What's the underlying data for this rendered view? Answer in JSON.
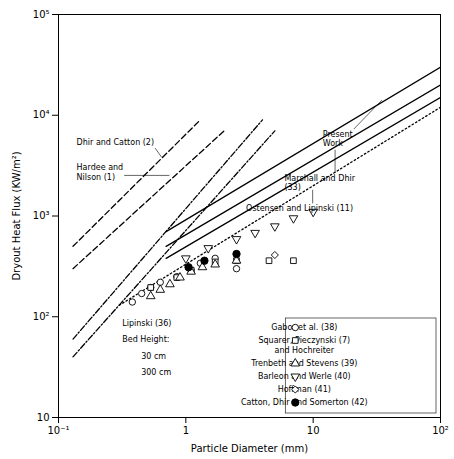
{
  "chart_data": {
    "type": "line",
    "log": true,
    "xlabel": "Particle Diameter (mm)",
    "ylabel": "Dryout Heat Flux (KW/m²)",
    "xlim": [
      0.1,
      100
    ],
    "ylim": [
      10,
      100000
    ],
    "xticks": [
      {
        "value": 0.1,
        "label": "10⁻¹"
      },
      1,
      10,
      {
        "value": 100,
        "label": "10²"
      }
    ],
    "yticks": [
      10,
      {
        "value": 100,
        "label": "10²"
      },
      {
        "value": 1000,
        "label": "10³"
      },
      {
        "value": 10000,
        "label": "10⁴"
      },
      {
        "value": 100000,
        "label": "10⁵"
      }
    ],
    "grid": false,
    "legend": "lower right",
    "series": [
      {
        "type": "line",
        "color": "black",
        "line_style": "dashed",
        "x": [
          0.13,
          1.3
        ],
        "values": [
          500,
          9000
        ]
      },
      {
        "type": "line",
        "color": "black",
        "line_style": "dashed",
        "x": [
          0.13,
          2.0
        ],
        "values": [
          300,
          7000
        ]
      },
      {
        "type": "line",
        "color": "black",
        "line_style": "dashdot",
        "x": [
          0.13,
          4.0
        ],
        "values": [
          60,
          9000
        ]
      },
      {
        "type": "line",
        "color": "black",
        "line_style": "dashdot",
        "x": [
          0.13,
          5.0
        ],
        "values": [
          40,
          7000
        ]
      },
      {
        "type": "line",
        "color": "black",
        "line_style": "solid",
        "x": [
          0.7,
          100
        ],
        "values": [
          700,
          30000
        ]
      },
      {
        "type": "line",
        "color": "black",
        "line_style": "solid",
        "x": [
          0.7,
          100
        ],
        "values": [
          500,
          20000
        ]
      },
      {
        "type": "line",
        "color": "black",
        "line_style": "solid",
        "x": [
          0.7,
          100
        ],
        "values": [
          380,
          15000
        ]
      },
      {
        "type": "line",
        "color": "black",
        "line_style": "dotted",
        "x": [
          0.3,
          100
        ],
        "values": [
          130,
          12000
        ]
      },
      {
        "name": "Gabor et al. (38)",
        "type": "scatter",
        "marker": "circle-open",
        "color": "black",
        "x": [
          0.38,
          0.45,
          0.53,
          0.63,
          0.85,
          1.1,
          1.3,
          1.7,
          2.5
        ],
        "values": [
          140,
          170,
          195,
          220,
          250,
          290,
          340,
          380,
          300
        ]
      },
      {
        "name": "Squarer, Pieczynski (7)\nand Hochreiter",
        "type": "scatter",
        "marker": "square-open",
        "color": "black",
        "x": [
          0.53,
          0.85,
          1.1,
          1.7,
          2.5,
          4.5,
          7.0
        ],
        "values": [
          195,
          245,
          290,
          350,
          360,
          360,
          360
        ]
      },
      {
        "name": "Trenbeth and Stevens (39)",
        "type": "scatter",
        "marker": "triangle-up-open",
        "color": "black",
        "x": [
          0.53,
          0.63,
          0.75,
          0.9,
          1.1,
          1.35,
          1.7,
          2.5
        ],
        "values": [
          160,
          185,
          210,
          245,
          280,
          310,
          330,
          360
        ]
      },
      {
        "name": "Barleon and Werle (40)",
        "type": "scatter",
        "marker": "triangle-down-open",
        "color": "black",
        "x": [
          1.0,
          1.5,
          2.5,
          3.5,
          5.0,
          7.0,
          10.0
        ],
        "values": [
          380,
          480,
          590,
          680,
          790,
          950,
          1100
        ]
      },
      {
        "name": "Hoffman (41)",
        "type": "scatter",
        "marker": "diamond-open",
        "color": "black",
        "x": [
          5.0
        ],
        "values": [
          410
        ]
      },
      {
        "name": "Catton, Dhir and Somerton (42)",
        "type": "scatter",
        "marker": "circle",
        "color": "black",
        "x": [
          1.05,
          1.4,
          2.5
        ],
        "values": [
          310,
          360,
          420
        ]
      }
    ],
    "annotations": [
      {
        "text": "Dhir and Catton (2)",
        "x": 0.14,
        "y": 5000,
        "arrow_x": 0.65,
        "arrow_y": 3800
      },
      {
        "text": "Hardee and\nNilson (1)",
        "x": 0.14,
        "y": 2800,
        "arrow_x": 0.75,
        "arrow_y": 2500
      },
      {
        "text": "Present\nWork",
        "x": 12,
        "y": 6000,
        "arrow_x": 35,
        "arrow_y": 14000
      },
      {
        "text": "Marshall and Dhir\n(33)",
        "x": 6,
        "y": 2200,
        "arrow_x": 15,
        "arrow_y": 4500
      },
      {
        "text": "Ostensen and Lipinski (11)",
        "x": 3,
        "y": 1100,
        "arrow_x": 10,
        "arrow_y": 1800
      },
      {
        "text": "Lipinski (36)",
        "x": 0.32,
        "y": 80
      },
      {
        "text": "Bed Height:",
        "x": 0.32,
        "y": 55
      },
      {
        "text": "30 cm",
        "x": 0.45,
        "y": 38
      },
      {
        "text": "300 cm",
        "x": 0.45,
        "y": 26
      }
    ]
  }
}
